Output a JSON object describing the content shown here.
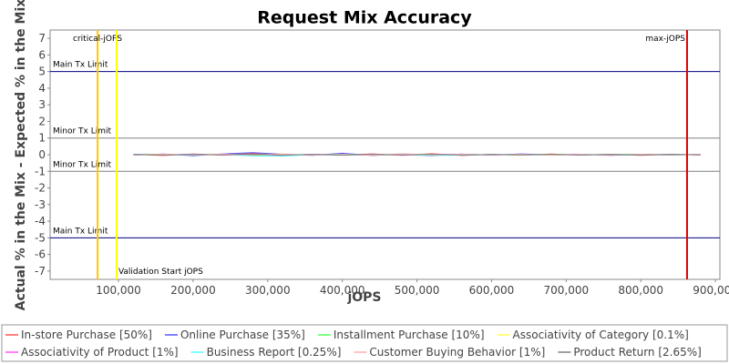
{
  "chart_data": {
    "type": "line",
    "title": "Request Mix Accuracy",
    "x_label": "jOPS",
    "y_label": "Actual % in the Mix - Expected % in the Mix",
    "xlim": [
      8400,
      906000
    ],
    "xticks": [
      {
        "value": 100000,
        "label": "100,000"
      },
      {
        "value": 200000,
        "label": "200,000"
      },
      {
        "value": 300000,
        "label": "300,000"
      },
      {
        "value": 400000,
        "label": "400,000"
      },
      {
        "value": 500000,
        "label": "500,000"
      },
      {
        "value": 600000,
        "label": "600,000"
      },
      {
        "value": 700000,
        "label": "700,000"
      },
      {
        "value": 800000,
        "label": "800,000"
      },
      {
        "value": 900000,
        "label": "900,000"
      }
    ],
    "ylim": [
      -7.5,
      7.5
    ],
    "yticks": [
      -7,
      -6,
      -5,
      -4,
      -3,
      -2,
      -1,
      0,
      1,
      2,
      3,
      4,
      5,
      6,
      7
    ],
    "x": [
      120000,
      160000,
      200000,
      240000,
      280000,
      320000,
      360000,
      400000,
      440000,
      480000,
      520000,
      560000,
      600000,
      640000,
      680000,
      720000,
      760000,
      800000,
      840000,
      880000
    ],
    "series": [
      {
        "name": "In-store Purchase [50%]",
        "color": "#ff5555",
        "values": [
          0.02,
          -0.05,
          0.04,
          -0.03,
          0.08,
          -0.06,
          0.03,
          -0.02,
          0.05,
          -0.04,
          0.06,
          -0.05,
          0.02,
          -0.03,
          0.04,
          -0.02,
          0.03,
          -0.04,
          0.02,
          -0.01
        ]
      },
      {
        "name": "Online Purchase [35%]",
        "color": "#5555ff",
        "values": [
          -0.03,
          0.04,
          -0.06,
          0.05,
          0.12,
          0.03,
          -0.04,
          0.09,
          -0.05,
          0.03,
          -0.06,
          0.04,
          -0.03,
          0.05,
          -0.02,
          0.03,
          -0.04,
          0.02,
          -0.03,
          0.02
        ]
      },
      {
        "name": "Installment Purchase [10%]",
        "color": "#55ff55",
        "values": [
          0.01,
          0.02,
          -0.02,
          0.03,
          -0.04,
          0.02,
          -0.01,
          0.03,
          -0.02,
          0.01,
          0.02,
          -0.03,
          0.01,
          -0.02,
          0.02,
          -0.01,
          0.01,
          0.02,
          -0.01,
          0.01
        ]
      },
      {
        "name": "Associativity of Category [0.1%]",
        "color": "#ffff55",
        "values": [
          0.0,
          0.01,
          0.0,
          -0.01,
          0.0,
          0.01,
          0.0,
          0.0,
          -0.01,
          0.0,
          0.01,
          0.0,
          0.0,
          -0.01,
          0.0,
          0.01,
          0.0,
          0.0,
          0.0,
          0.0
        ]
      },
      {
        "name": "Associativity of Product [1%]",
        "color": "#ff55ff",
        "values": [
          0.02,
          -0.01,
          0.03,
          -0.02,
          0.01,
          -0.03,
          0.02,
          -0.01,
          0.02,
          -0.02,
          0.01,
          0.03,
          -0.02,
          0.01,
          -0.01,
          0.02,
          -0.02,
          0.01,
          0.0,
          0.01
        ]
      },
      {
        "name": "Business Report [0.25%]",
        "color": "#55ffff",
        "values": [
          0.01,
          0.0,
          -0.01,
          0.02,
          -0.08,
          -0.09,
          0.01,
          -0.02,
          0.0,
          0.02,
          -0.05,
          -0.03,
          0.01,
          0.0,
          -0.02,
          0.01,
          0.0,
          -0.01,
          0.01,
          0.0
        ]
      },
      {
        "name": "Customer Buying Behavior [1%]",
        "color": "#ffafaf",
        "values": [
          -0.02,
          0.03,
          -0.01,
          0.04,
          -0.02,
          0.05,
          -0.03,
          0.02,
          -0.04,
          0.06,
          -0.02,
          0.03,
          -0.01,
          0.02,
          -0.03,
          0.01,
          -0.02,
          0.03,
          -0.01,
          0.02
        ]
      },
      {
        "name": "Product Return [2.65%]",
        "color": "#808080",
        "values": [
          0.01,
          -0.02,
          0.02,
          -0.01,
          0.03,
          -0.02,
          0.01,
          -0.03,
          0.02,
          -0.01,
          0.02,
          -0.02,
          0.01,
          -0.01,
          0.02,
          -0.02,
          0.01,
          -0.01,
          0.02,
          -0.01
        ]
      }
    ],
    "x_markers": [
      {
        "label": "critical-jOPS",
        "value": 72000,
        "color": "#ffc800"
      },
      {
        "label": "Validation Start jOPS",
        "value": 97500,
        "color": "#ffff00"
      },
      {
        "label": "max-jOPS",
        "value": 862000,
        "color": "#e00000"
      }
    ],
    "y_markers": [
      {
        "label": "Main Tx Limit",
        "value": 5,
        "color": "#000080"
      },
      {
        "label": "Minor Tx Limit",
        "value": 1,
        "color": "#808080"
      },
      {
        "label": "Minor Tx Limit",
        "value": -1,
        "color": "#808080"
      },
      {
        "label": "Main Tx Limit",
        "value": -5,
        "color": "#000080"
      }
    ]
  }
}
